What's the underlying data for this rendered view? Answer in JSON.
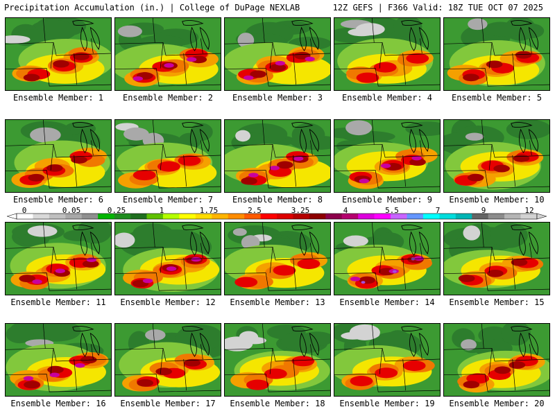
{
  "header": {
    "left": "Precipitation Accumulation (in.) | College of DuPage NEXLAB",
    "right": "12Z GEFS | F366 Valid: 18Z TUE OCT 07 2025"
  },
  "colorbar": {
    "ticks": [
      "0",
      "0.05",
      "0.25",
      "1",
      "1.75",
      "2.5",
      "3.25",
      "4",
      "5.5",
      "7",
      "9",
      "12"
    ],
    "colors": [
      "#ffffff",
      "#d9d9d9",
      "#bfbfbf",
      "#a8a8a8",
      "#8f8f8f",
      "#00b400",
      "#1e8c1e",
      "#1e6e1e",
      "#5fc000",
      "#b4ff00",
      "#ffff00",
      "#ffdc00",
      "#ffb400",
      "#ff8c00",
      "#ff5a00",
      "#ff0000",
      "#dc0000",
      "#b40000",
      "#8c0000",
      "#8c004b",
      "#b4006e",
      "#dc00dc",
      "#ff00ff",
      "#c864ff",
      "#6496ff",
      "#00ffff",
      "#00dcdc",
      "#00b4b4",
      "#646464",
      "#8c8c8c",
      "#b4b4b4",
      "#d2d2d2"
    ]
  },
  "palette": {
    "gray": "#a9a9a9",
    "lightgray": "#d3d3d3",
    "darkgreen": "#2d7d2d",
    "green": "#3c9a32",
    "lightgreen": "#82c83c",
    "yellow": "#f5e600",
    "orange": "#f5a000",
    "darkorange": "#f07800",
    "red": "#e60000",
    "darkred": "#a00000",
    "magenta": "#c800a0",
    "purple": "#a050e0",
    "cyan": "#00e6f0"
  },
  "panels": [
    {
      "label": "Ensemble Member: 1",
      "intensity": 2
    },
    {
      "label": "Ensemble Member: 2",
      "intensity": 3
    },
    {
      "label": "Ensemble Member: 3",
      "intensity": 3
    },
    {
      "label": "Ensemble Member: 4",
      "intensity": 1
    },
    {
      "label": "Ensemble Member: 5",
      "intensity": 2
    },
    {
      "label": "Ensemble Member: 6",
      "intensity": 2
    },
    {
      "label": "Ensemble Member: 7",
      "intensity": 1
    },
    {
      "label": "Ensemble Member: 8",
      "intensity": 3
    },
    {
      "label": "Ensemble Member: 9",
      "intensity": 3
    },
    {
      "label": "Ensemble Member: 10",
      "intensity": 2
    },
    {
      "label": "Ensemble Member: 11",
      "intensity": 3
    },
    {
      "label": "Ensemble Member: 12",
      "intensity": 3
    },
    {
      "label": "Ensemble Member: 13",
      "intensity": 1
    },
    {
      "label": "Ensemble Member: 14",
      "intensity": 4
    },
    {
      "label": "Ensemble Member: 15",
      "intensity": 2
    },
    {
      "label": "Ensemble Member: 16",
      "intensity": 3
    },
    {
      "label": "Ensemble Member: 17",
      "intensity": 2
    },
    {
      "label": "Ensemble Member: 18",
      "intensity": 1
    },
    {
      "label": "Ensemble Member: 19",
      "intensity": 1
    },
    {
      "label": "Ensemble Member: 20",
      "intensity": 2
    }
  ]
}
